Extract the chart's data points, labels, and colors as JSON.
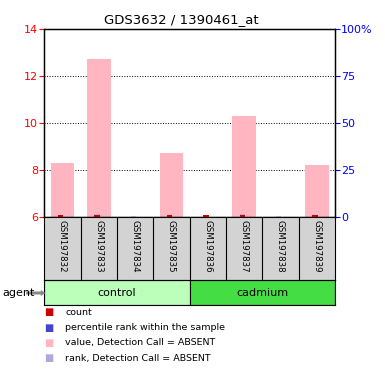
{
  "title": "GDS3632 / 1390461_at",
  "samples": [
    "GSM197832",
    "GSM197833",
    "GSM197834",
    "GSM197835",
    "GSM197836",
    "GSM197837",
    "GSM197838",
    "GSM197839"
  ],
  "pink_values": [
    8.3,
    12.7,
    6.0,
    8.7,
    6.3,
    10.3,
    6.0,
    8.2
  ],
  "blue_rank_values": [
    0.08,
    0.11,
    0.02,
    0.08,
    0.06,
    0.11,
    0.04,
    0.08
  ],
  "has_red": [
    true,
    true,
    false,
    true,
    true,
    true,
    false,
    true
  ],
  "has_pink": [
    true,
    true,
    false,
    true,
    false,
    true,
    false,
    true
  ],
  "ylim_left": [
    6,
    14
  ],
  "ylim_right": [
    0,
    100
  ],
  "yticks_left": [
    6,
    8,
    10,
    12,
    14
  ],
  "yticks_right": [
    0,
    25,
    50,
    75,
    100
  ],
  "ytick_labels_right": [
    "0",
    "25",
    "50",
    "75",
    "100%"
  ],
  "pink_color": "#ffb6c1",
  "blue_rank_color": "#aaaadd",
  "red_count_color": "#cc0000",
  "blue_sq_color": "#4444cc",
  "control_light": "#bbffbb",
  "cadmium_green": "#44dd44",
  "grey_box": "#d3d3d3",
  "legend_items": [
    {
      "label": "count",
      "color": "#cc0000"
    },
    {
      "label": "percentile rank within the sample",
      "color": "#4444cc"
    },
    {
      "label": "value, Detection Call = ABSENT",
      "color": "#ffb6c1"
    },
    {
      "label": "rank, Detection Call = ABSENT",
      "color": "#aaaadd"
    }
  ]
}
